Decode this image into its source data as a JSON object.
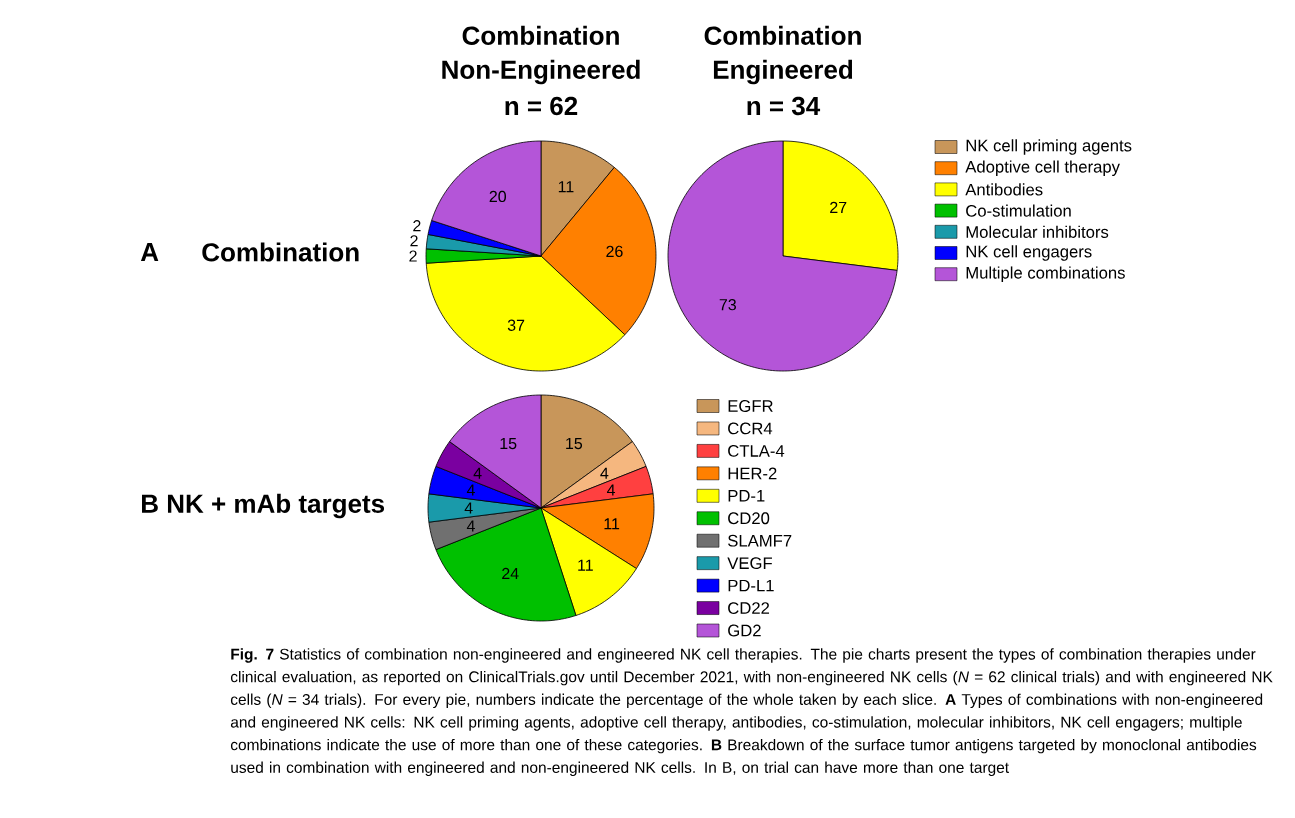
{
  "chart_data": [
    {
      "type": "pie",
      "title": "Combination Non-Engineered",
      "subtitle": "n = 62",
      "categories": [
        "NK cell priming agents",
        "Adoptive cell therapy",
        "Antibodies",
        "Co-stimulation",
        "Molecular inhibitors",
        "NK cell engagers",
        "Multiple combinations"
      ],
      "values": [
        11,
        26,
        37,
        2,
        2,
        2,
        20
      ],
      "colors": [
        "#c8965a",
        "#ff8000",
        "#ffff00",
        "#00c000",
        "#1a9aaa",
        "#0000ff",
        "#b455d8"
      ],
      "data_labels": true,
      "legend": "right",
      "annotations": [
        "A",
        "Combination"
      ]
    },
    {
      "type": "pie",
      "title": "Combination Engineered",
      "subtitle": "n = 34",
      "categories": [
        null,
        null
      ],
      "values": [
        27,
        73
      ],
      "colors": [
        "#ffff00",
        "#b455d8"
      ],
      "data_labels": true
    },
    {
      "type": "pie",
      "categories": [
        "EGFR",
        "CCR4",
        "CTLA-4",
        "HER-2",
        "PD-1",
        "CD20",
        "SLAMF7",
        "VEGF",
        "PD-L1",
        "CD22",
        "GD2"
      ],
      "values": [
        15,
        4,
        4,
        11,
        11,
        24,
        4,
        4,
        4,
        4,
        15
      ],
      "colors": [
        "#c8965a",
        "#f5b77f",
        "#ff4040",
        "#ff8000",
        "#ffff00",
        "#00c000",
        "#707070",
        "#1a9aaa",
        "#0000ff",
        "#7a00a0",
        "#b455d8"
      ],
      "data_labels": true,
      "legend": "right",
      "annotations": [
        "B NK + mAb targets",
        "**Fig. 7** Statistics of combination non-engineered and engineered NK cell therapies. The pie charts present the types of combination therapies under clinical evaluation, as reported on ClinicalTrials.gov until December 2021, with non-engineered NK cells (*N* = 62 clinical trials) and with engineered NK cells (*N* = 34 trials). For every pie, numbers indicate the percentage of the whole taken by each slice. **A** Types of combinations with non-engineered and engineered NK cells: NK cell priming agents, adoptive cell therapy, antibodies, co-stimulation, molecular inhibitors, NK cell engagers; multiple combinations indicate the use of more than one of these categories. **B** Breakdown of the surface tumor antigens targeted by monoclonal antibodies used in combination with engineered and non-engineered NK cells. In B, on trial can have more than one target"
      ]
    }
  ]
}
